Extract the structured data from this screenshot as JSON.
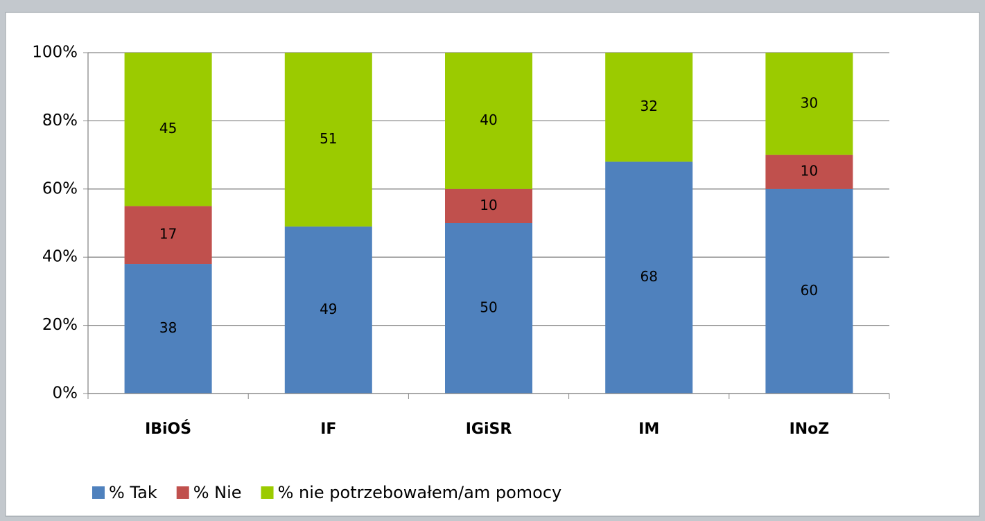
{
  "chart_data": {
    "type": "stacked_bar",
    "categories": [
      "IBiOŚ",
      "IF",
      "IGiSR",
      "IM",
      "INoZ"
    ],
    "series": [
      {
        "name": "% Tak",
        "color": "#4f81bd",
        "values": [
          38,
          49,
          50,
          68,
          60
        ]
      },
      {
        "name": "% Nie",
        "color": "#c0504d",
        "values": [
          17,
          null,
          10,
          null,
          10
        ]
      },
      {
        "name": "% nie potrzebowałem/am pomocy",
        "color": "#9bcb00",
        "values": [
          45,
          51,
          40,
          32,
          30
        ]
      }
    ],
    "ylim": [
      0,
      100
    ],
    "yticks": [
      {
        "value": 0,
        "label": "0%"
      },
      {
        "value": 20,
        "label": "20%"
      },
      {
        "value": 40,
        "label": "40%"
      },
      {
        "value": 60,
        "label": "60%"
      },
      {
        "value": 80,
        "label": "80%"
      },
      {
        "value": 100,
        "label": "100%"
      }
    ],
    "grid": true,
    "legend": "bottom"
  }
}
